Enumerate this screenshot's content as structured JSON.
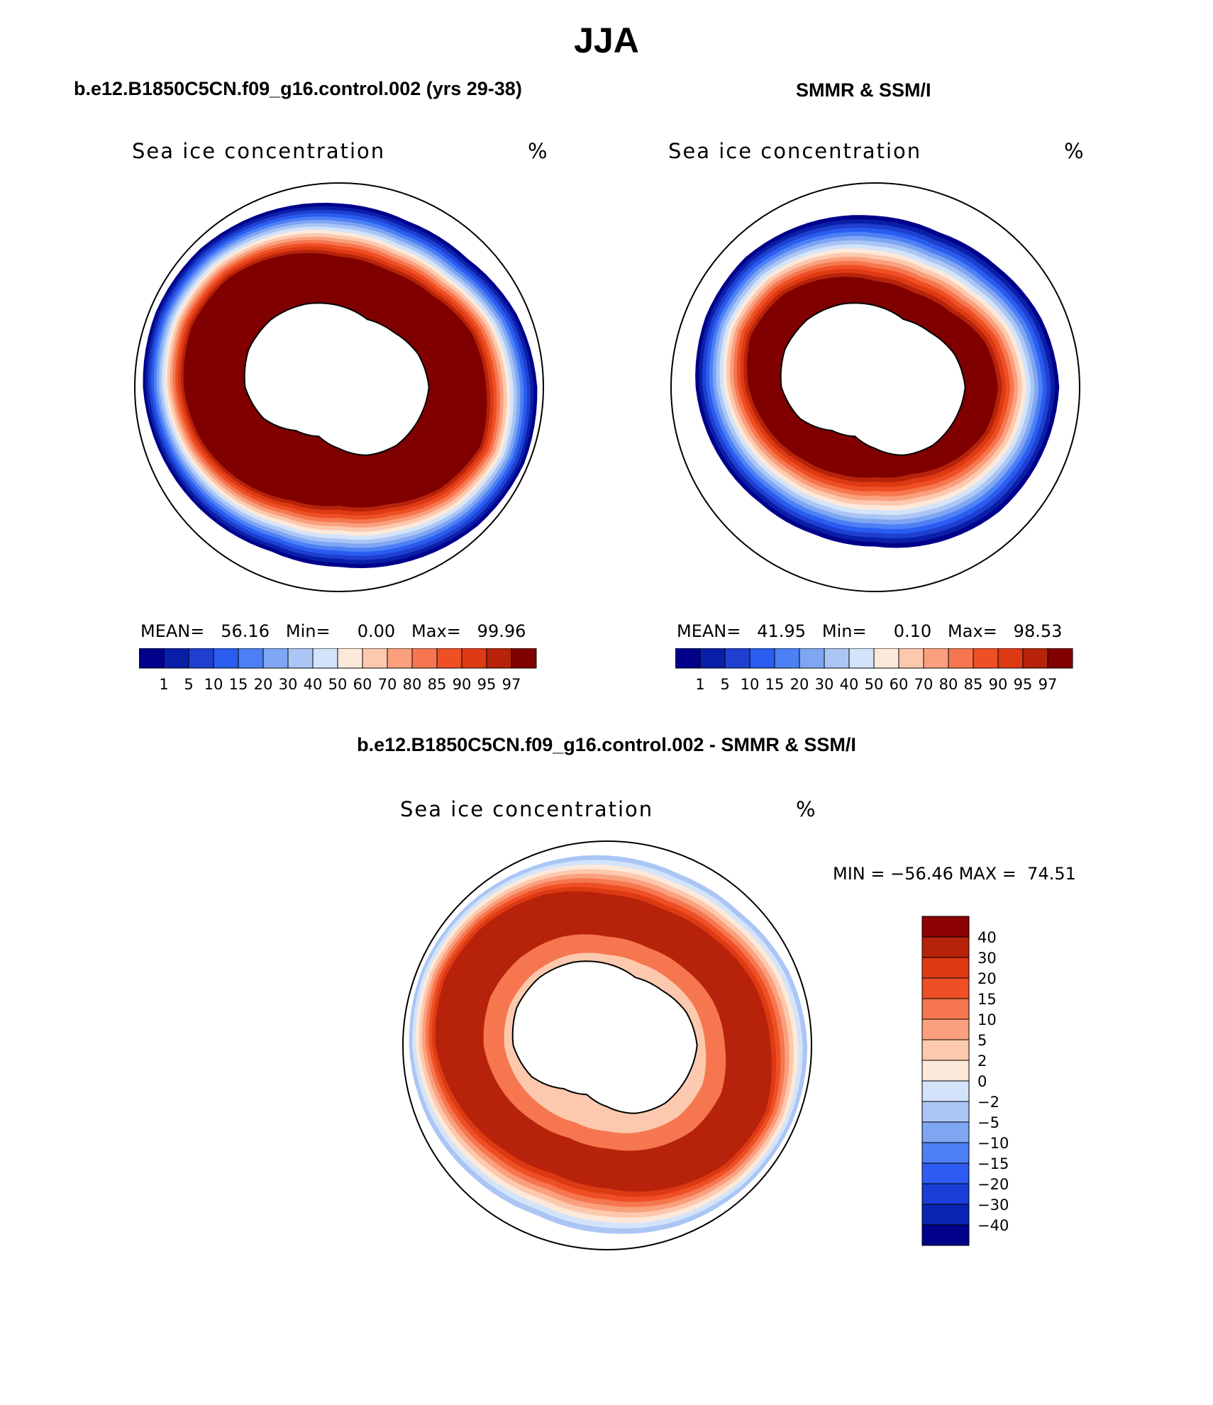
{
  "page": {
    "title": "JJA",
    "bottom_title": "b.e12.B1850C5CN.f09_g16.control.002 - SMMR & SSM/I"
  },
  "colors": {
    "abs_scale": [
      "#00008b",
      "#0a1fa8",
      "#1f3fd0",
      "#2a5cf0",
      "#4d80f5",
      "#7fa6f2",
      "#abc6f5",
      "#d3e4fa",
      "#fde9da",
      "#fcc9ae",
      "#faa07e",
      "#f6774f",
      "#ef4f25",
      "#dd3a13",
      "#b7230a",
      "#800000"
    ],
    "diff_scale": [
      "#00008b",
      "#0a24b4",
      "#1a3ed8",
      "#2f5cf0",
      "#4d80f5",
      "#7fa6f2",
      "#abc6f5",
      "#d3e4fa",
      "#fde9da",
      "#fcc9ae",
      "#faa07e",
      "#f6774f",
      "#ef4f25",
      "#dd3a13",
      "#b7230a",
      "#8b0000"
    ],
    "land": "#ffffff"
  },
  "chart_data": [
    {
      "type": "heatmap",
      "projection": "south-polar-stereographic",
      "title": "b.e12.B1850C5CN.f09_g16.control.002 (yrs 29-38)",
      "field_label": "Sea ice concentration",
      "units": "%",
      "stats": {
        "mean_label": "MEAN=",
        "mean": "56.16",
        "min_label": "Min=",
        "min": "0.00",
        "max_label": "Max=",
        "max": "99.96"
      },
      "colorbar_ticks": [
        "1",
        "5",
        "10",
        "15",
        "20",
        "30",
        "40",
        "50",
        "60",
        "70",
        "80",
        "85",
        "90",
        "95",
        "97"
      ],
      "ice_extent_profile": [
        0.97,
        0.98,
        0.96,
        0.92,
        0.88,
        0.87,
        0.9,
        0.93,
        0.96,
        0.97,
        0.96,
        0.93,
        0.9,
        0.88,
        0.89,
        0.94
      ],
      "core_profile": [
        0.72,
        0.75,
        0.7,
        0.62,
        0.58,
        0.6,
        0.66,
        0.72,
        0.76,
        0.78,
        0.76,
        0.7,
        0.64,
        0.62,
        0.64,
        0.7
      ]
    },
    {
      "type": "heatmap",
      "projection": "south-polar-stereographic",
      "title": "SMMR & SSM/I",
      "field_label": "Sea ice concentration",
      "units": "%",
      "stats": {
        "mean_label": "MEAN=",
        "mean": "41.95",
        "min_label": "Min=",
        "min": "0.10",
        "max_label": "Max=",
        "max": "98.53"
      },
      "colorbar_ticks": [
        "1",
        "5",
        "10",
        "15",
        "20",
        "30",
        "40",
        "50",
        "60",
        "70",
        "80",
        "85",
        "90",
        "95",
        "97"
      ],
      "ice_extent_profile": [
        0.9,
        0.88,
        0.86,
        0.82,
        0.78,
        0.78,
        0.8,
        0.84,
        0.88,
        0.9,
        0.9,
        0.87,
        0.84,
        0.82,
        0.84,
        0.88
      ],
      "core_profile": [
        0.6,
        0.58,
        0.52,
        0.46,
        0.44,
        0.46,
        0.5,
        0.56,
        0.62,
        0.66,
        0.64,
        0.58,
        0.52,
        0.5,
        0.52,
        0.58
      ]
    },
    {
      "type": "heatmap",
      "projection": "south-polar-stereographic",
      "title": "b.e12.B1850C5CN.f09_g16.control.002 - SMMR & SSM/I",
      "field_label": "Sea ice concentration",
      "units": "%",
      "minmax": {
        "min_label": "MIN =",
        "min": "−56.46",
        "max_label": "MAX =",
        "max": "74.51"
      },
      "colorbar_ticks": [
        "40",
        "30",
        "20",
        "15",
        "10",
        "5",
        "2",
        "0",
        "−2",
        "−5",
        "−10",
        "−15",
        "−20",
        "−30",
        "−40"
      ],
      "ice_extent_profile": [
        0.98,
        0.98,
        0.97,
        0.95,
        0.92,
        0.9,
        0.92,
        0.95,
        0.97,
        0.98,
        0.97,
        0.95,
        0.93,
        0.91,
        0.92,
        0.96
      ],
      "core_profile": [
        0.8,
        0.84,
        0.82,
        0.76,
        0.7,
        0.68,
        0.72,
        0.78,
        0.84,
        0.86,
        0.84,
        0.8,
        0.74,
        0.72,
        0.74,
        0.78
      ]
    }
  ]
}
